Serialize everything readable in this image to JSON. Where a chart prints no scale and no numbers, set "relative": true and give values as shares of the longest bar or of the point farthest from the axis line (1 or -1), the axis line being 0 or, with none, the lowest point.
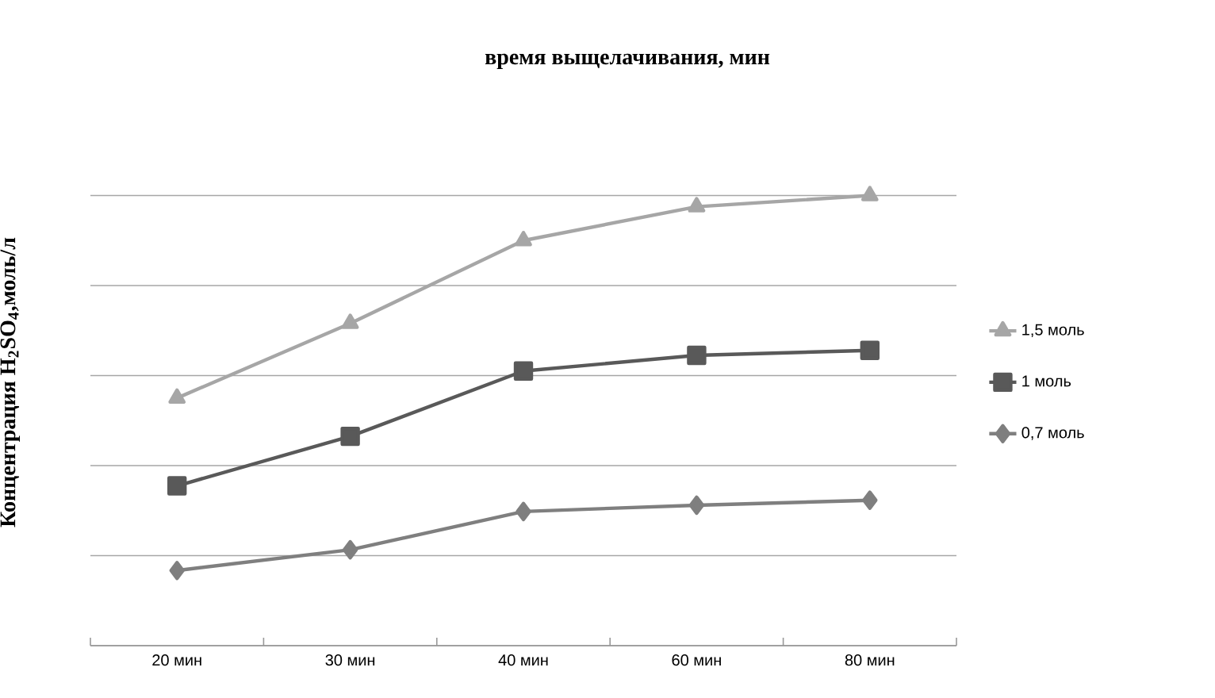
{
  "chart_data": {
    "type": "line",
    "title": "время выщелачивания, мин",
    "ylabel": "Концентрация H$_{2}$SO$_{4}$,моль/л",
    "categories": [
      "20 мин",
      "30 мин",
      "40 мин",
      "60 мин",
      "80 мин"
    ],
    "relative": true,
    "grid": "y",
    "legend": "right",
    "series": [
      {
        "name": "1,5 моль",
        "color": "#a6a6a6",
        "marker": "triangle",
        "values": [
          0.55,
          0.716,
          0.9,
          0.975,
          1.0
        ]
      },
      {
        "name": "1 моль",
        "color": "#595959",
        "marker": "square",
        "values": [
          0.355,
          0.465,
          0.61,
          0.645,
          0.656
        ]
      },
      {
        "name": "0,7 моль",
        "color": "#7f7f7f",
        "marker": "diamond",
        "values": [
          0.167,
          0.213,
          0.298,
          0.312,
          0.323
        ]
      }
    ]
  }
}
